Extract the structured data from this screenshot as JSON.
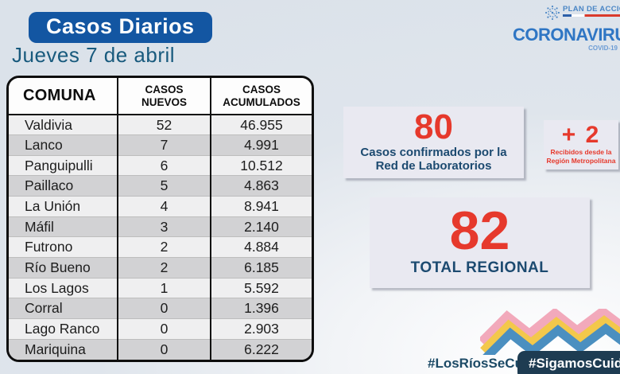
{
  "page": {
    "title_badge": "Casos Diarios",
    "date": "Jueves 7 de abril"
  },
  "logo": {
    "plan_label": "PLAN DE ACCIÓN",
    "brand": "CORONAVIRUS",
    "sub_brand": "COVID-19"
  },
  "table": {
    "columns": [
      "COMUNA",
      "CASOS NUEVOS",
      "CASOS ACUMULADOS"
    ],
    "rows": [
      {
        "comuna": "Valdivia",
        "nuevos": "52",
        "acumulados": "46.955"
      },
      {
        "comuna": "Lanco",
        "nuevos": "7",
        "acumulados": "4.991"
      },
      {
        "comuna": "Panguipulli",
        "nuevos": "6",
        "acumulados": "10.512"
      },
      {
        "comuna": "Paillaco",
        "nuevos": "5",
        "acumulados": "4.863"
      },
      {
        "comuna": "La Unión",
        "nuevos": "4",
        "acumulados": "8.941"
      },
      {
        "comuna": "Máfil",
        "nuevos": "3",
        "acumulados": "2.140"
      },
      {
        "comuna": "Futrono",
        "nuevos": "2",
        "acumulados": "4.884"
      },
      {
        "comuna": "Río Bueno",
        "nuevos": "2",
        "acumulados": "6.185"
      },
      {
        "comuna": "Los Lagos",
        "nuevos": "1",
        "acumulados": "5.592"
      },
      {
        "comuna": "Corral",
        "nuevos": "0",
        "acumulados": "1.396"
      },
      {
        "comuna": "Lago Ranco",
        "nuevos": "0",
        "acumulados": "2.903"
      },
      {
        "comuna": "Mariquina",
        "nuevos": "0",
        "acumulados": "6.222"
      }
    ]
  },
  "stats": {
    "confirmed": {
      "value": "80",
      "label_line1": "Casos confirmados por la",
      "label_line2": "Red de Laboratorios"
    },
    "metropolitan": {
      "value": "+ 2",
      "label_line1": "Recibidos desde la",
      "label_line2": "Región Metropolitana"
    },
    "total": {
      "value": "82",
      "label": "TOTAL REGIONAL"
    }
  },
  "footer": {
    "hashtag_plain": "#LosRíosSeCuida",
    "hashtag_badge": "#SigamosCuidándonos"
  },
  "colors": {
    "accent_red": "#E6392C",
    "brand_blue": "#1356A2",
    "dark_blue": "#1C4A70",
    "navy_badge": "#1E3C52",
    "zigzag_pink": "#F2A9BB",
    "zigzag_yellow": "#F3C84B",
    "zigzag_blue": "#4B8FC0"
  },
  "chart_data": {
    "type": "table",
    "title": "Casos Diarios — Jueves 7 de abril",
    "columns": [
      "COMUNA",
      "CASOS NUEVOS",
      "CASOS ACUMULADOS"
    ],
    "rows": [
      [
        "Valdivia",
        52,
        46955
      ],
      [
        "Lanco",
        7,
        4991
      ],
      [
        "Panguipulli",
        6,
        10512
      ],
      [
        "Paillaco",
        5,
        4863
      ],
      [
        "La Unión",
        4,
        8941
      ],
      [
        "Máfil",
        3,
        2140
      ],
      [
        "Futrono",
        2,
        4884
      ],
      [
        "Río Bueno",
        2,
        6185
      ],
      [
        "Los Lagos",
        1,
        5592
      ],
      [
        "Corral",
        0,
        1396
      ],
      [
        "Lago Ranco",
        0,
        2903
      ],
      [
        "Mariquina",
        0,
        6222
      ]
    ],
    "annotations": [
      "80 Casos confirmados por la Red de Laboratorios",
      "+ 2 Recibidos desde la Región Metropolitana",
      "82 TOTAL REGIONAL"
    ]
  }
}
